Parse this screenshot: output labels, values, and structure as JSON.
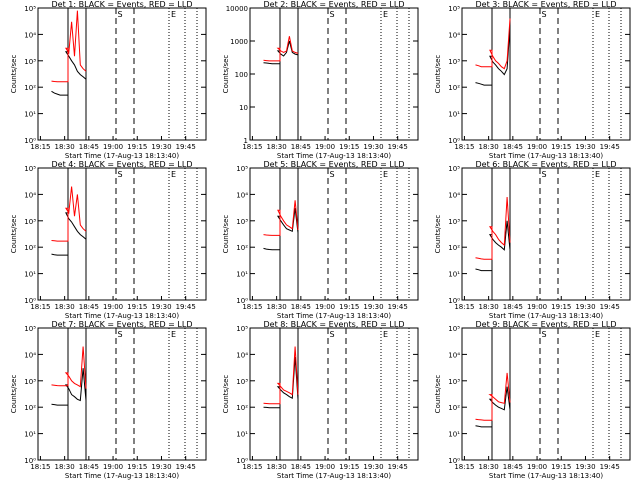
{
  "chart_data": [
    {
      "title": "Det 1: BLACK = Events, RED = LLD",
      "ylabel": "Counts/sec",
      "xlabel": "Start Time (17-Aug-13 18:13:40)",
      "type": "line",
      "ylog": true,
      "yticks": [
        "10⁰",
        "10¹",
        "10²",
        "10³",
        "10⁴",
        "10⁵"
      ],
      "xticks": [
        "18:15",
        "18:30",
        "18:45",
        "19:00",
        "19:15",
        "19:30",
        "19:45"
      ],
      "markers": {
        "S": "S",
        "E": "E"
      },
      "series": [
        {
          "color": "#000000",
          "values": [
            null,
            null,
            null,
            null,
            70,
            60,
            55,
            50,
            "jump",
            2200,
            1500,
            1000,
            700,
            400,
            300,
            250,
            200
          ]
        },
        {
          "color": "#ff0000",
          "values": [
            null,
            null,
            null,
            null,
            170,
            165,
            160,
            160,
            "jump",
            3000,
            2000,
            30000,
            1500,
            80000,
            700,
            500,
            400
          ]
        }
      ]
    },
    {
      "title": "Det 2: BLACK = Events, RED = LLD",
      "ylabel": "Counts/sec",
      "xlabel": "Start Time (17-Aug-13 18:13:40)",
      "type": "line",
      "ylog": true,
      "yticks": [
        "1",
        "10",
        "100",
        "1000",
        "10000"
      ],
      "xticks": [
        "18:15",
        "18:30",
        "18:45",
        "19:00",
        "19:15",
        "19:30",
        "19:45"
      ],
      "markers": {
        "S": "S",
        "E": "E"
      },
      "series": [
        {
          "color": "#000000",
          "values": [
            null,
            null,
            null,
            null,
            220,
            215,
            210,
            205,
            "jump",
            500,
            400,
            350,
            450,
            1000,
            450,
            400,
            380
          ]
        },
        {
          "color": "#ff0000",
          "values": [
            null,
            null,
            null,
            null,
            260,
            255,
            250,
            250,
            "jump",
            600,
            500,
            450,
            500,
            1400,
            500,
            450,
            420
          ]
        }
      ]
    },
    {
      "title": "Det 3: BLACK = Events, RED = LLD",
      "ylabel": "Counts/sec",
      "xlabel": "Start Time (17-Aug-13 18:13:40)",
      "type": "line",
      "ylog": true,
      "yticks": [
        "10⁰",
        "10¹",
        "10²",
        "10³",
        "10⁴",
        "10⁵"
      ],
      "xticks": [
        "18:15",
        "18:30",
        "18:45",
        "19:00",
        "19:15",
        "19:30",
        "19:45"
      ],
      "markers": {
        "S": "S",
        "E": "E"
      },
      "series": [
        {
          "color": "#000000",
          "values": [
            null,
            null,
            null,
            null,
            150,
            140,
            130,
            120,
            "jump",
            1500,
            900,
            700,
            500,
            400,
            300,
            500,
            20000
          ]
        },
        {
          "color": "#ff0000",
          "values": [
            null,
            null,
            null,
            null,
            700,
            650,
            600,
            600,
            "jump",
            2500,
            1500,
            1000,
            800,
            600,
            500,
            1000,
            40000
          ]
        }
      ]
    },
    {
      "title": "Det 4: BLACK = Events, RED = LLD",
      "ylabel": "Counts/sec",
      "xlabel": "Start Time (17-Aug-13 18:13:40)",
      "type": "line",
      "ylog": true,
      "yticks": [
        "10⁰",
        "10¹",
        "10²",
        "10³",
        "10⁴",
        "10⁵"
      ],
      "xticks": [
        "18:15",
        "18:30",
        "18:45",
        "19:00",
        "19:15",
        "19:30",
        "19:45"
      ],
      "markers": {
        "S": "S",
        "E": "E"
      },
      "series": [
        {
          "color": "#000000",
          "values": [
            null,
            null,
            null,
            null,
            55,
            52,
            50,
            50,
            "jump",
            2000,
            1200,
            900,
            600,
            400,
            300,
            250,
            200
          ]
        },
        {
          "color": "#ff0000",
          "values": [
            null,
            null,
            null,
            null,
            180,
            175,
            170,
            170,
            "jump",
            3000,
            2000,
            20000,
            1500,
            10000,
            700,
            500,
            400
          ]
        }
      ]
    },
    {
      "title": "Det 5: BLACK = Events, RED = LLD",
      "ylabel": "Counts/sec",
      "xlabel": "Start Time (17-Aug-13 18:13:40)",
      "type": "line",
      "ylog": true,
      "yticks": [
        "10⁰",
        "10¹",
        "10²",
        "10³",
        "10⁴",
        "10⁵"
      ],
      "xticks": [
        "18:15",
        "18:30",
        "18:45",
        "19:00",
        "19:15",
        "19:30",
        "19:45"
      ],
      "markers": {
        "S": "S",
        "E": "E"
      },
      "series": [
        {
          "color": "#000000",
          "values": [
            null,
            null,
            null,
            null,
            90,
            85,
            82,
            80,
            "jump",
            1500,
            1000,
            700,
            500,
            450,
            400,
            3000,
            350
          ]
        },
        {
          "color": "#ff0000",
          "values": [
            null,
            null,
            null,
            null,
            300,
            290,
            285,
            280,
            "jump",
            2500,
            1500,
            1000,
            700,
            600,
            500,
            6000,
            450
          ]
        }
      ]
    },
    {
      "title": "Det 6: BLACK = Events, RED = LLD",
      "ylabel": "Counts/sec",
      "xlabel": "Start Time (17-Aug-13 18:13:40)",
      "type": "line",
      "ylog": true,
      "yticks": [
        "10⁰",
        "10¹",
        "10²",
        "10³",
        "10⁴",
        "10⁵"
      ],
      "xticks": [
        "18:15",
        "18:30",
        "18:45",
        "19:00",
        "19:15",
        "19:30",
        "19:45"
      ],
      "markers": {
        "S": "S",
        "E": "E"
      },
      "series": [
        {
          "color": "#000000",
          "values": [
            null,
            null,
            null,
            null,
            15,
            14,
            13,
            13,
            "jump",
            300,
            200,
            150,
            120,
            100,
            80,
            1000,
            80
          ]
        },
        {
          "color": "#ff0000",
          "values": [
            null,
            null,
            null,
            null,
            40,
            38,
            36,
            35,
            "jump",
            600,
            400,
            300,
            200,
            150,
            120,
            8000,
            150
          ]
        }
      ]
    },
    {
      "title": "Det 7: BLACK = Events, RED = LLD",
      "ylabel": "Counts/sec",
      "xlabel": "Start Time (17-Aug-13 18:13:40)",
      "type": "line",
      "ylog": true,
      "yticks": [
        "10⁰",
        "10¹",
        "10²",
        "10³",
        "10⁴",
        "10⁵"
      ],
      "xticks": [
        "18:15",
        "18:30",
        "18:45",
        "19:00",
        "19:15",
        "19:30",
        "19:45"
      ],
      "markers": {
        "S": "S",
        "E": "E"
      },
      "series": [
        {
          "color": "#000000",
          "values": [
            null,
            null,
            null,
            null,
            130,
            125,
            120,
            120,
            "jump",
            700,
            500,
            300,
            250,
            200,
            180,
            3000,
            180
          ]
        },
        {
          "color": "#ff0000",
          "values": [
            null,
            null,
            null,
            null,
            700,
            680,
            660,
            650,
            "jump",
            2000,
            1500,
            1000,
            800,
            700,
            600,
            20000,
            500
          ]
        }
      ]
    },
    {
      "title": "Det 8: BLACK = Events, RED = LLD",
      "ylabel": "Counts/sec",
      "xlabel": "Start Time (17-Aug-13 18:13:40)",
      "type": "line",
      "ylog": true,
      "yticks": [
        "10⁰",
        "10¹",
        "10²",
        "10³",
        "10⁴",
        "10⁵"
      ],
      "xticks": [
        "18:15",
        "18:30",
        "18:45",
        "19:00",
        "19:15",
        "19:30",
        "19:45"
      ],
      "markers": {
        "S": "S",
        "E": "E"
      },
      "series": [
        {
          "color": "#000000",
          "values": [
            null,
            null,
            null,
            null,
            100,
            98,
            95,
            95,
            "jump",
            600,
            450,
            350,
            300,
            250,
            220,
            8000,
            200
          ]
        },
        {
          "color": "#ff0000",
          "values": [
            null,
            null,
            null,
            null,
            140,
            138,
            135,
            135,
            "jump",
            800,
            600,
            450,
            400,
            350,
            300,
            20000,
            300
          ]
        }
      ]
    },
    {
      "title": "Det 9: BLACK = Events, RED = LLD",
      "ylabel": "Counts/sec",
      "xlabel": "Start Time (17-Aug-13 18:13:40)",
      "type": "line",
      "ylog": true,
      "yticks": [
        "10⁰",
        "10¹",
        "10²",
        "10³",
        "10⁴",
        "10⁵"
      ],
      "xticks": [
        "18:15",
        "18:30",
        "18:45",
        "19:00",
        "19:15",
        "19:30",
        "19:45"
      ],
      "markers": {
        "S": "S",
        "E": "E"
      },
      "series": [
        {
          "color": "#000000",
          "values": [
            null,
            null,
            null,
            null,
            20,
            19,
            18,
            18,
            "jump",
            200,
            150,
            120,
            100,
            90,
            80,
            600,
            80
          ]
        },
        {
          "color": "#ff0000",
          "values": [
            null,
            null,
            null,
            null,
            35,
            34,
            33,
            32,
            "jump",
            300,
            250,
            200,
            160,
            150,
            140,
            2000,
            150
          ]
        }
      ]
    }
  ]
}
